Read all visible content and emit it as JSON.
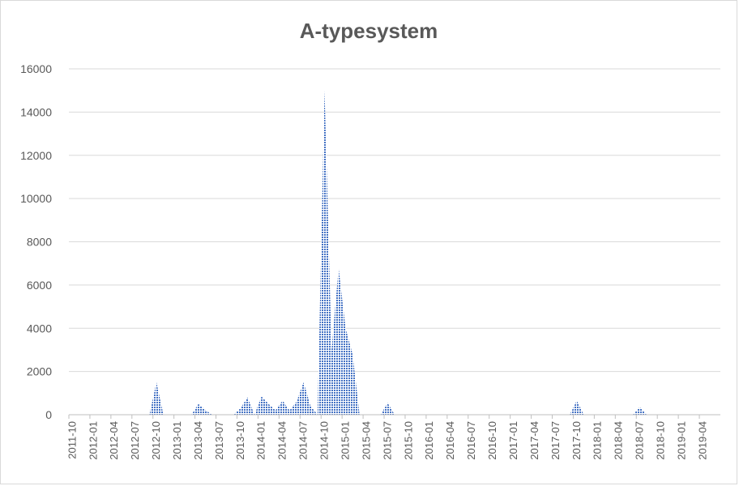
{
  "chart_data": {
    "type": "area",
    "title": "A-typesystem",
    "xlabel": "",
    "ylabel": "",
    "ylim": [
      0,
      16000
    ],
    "yticks": [
      0,
      2000,
      4000,
      6000,
      8000,
      10000,
      12000,
      14000,
      16000
    ],
    "grid": true,
    "x_tick_labels": [
      "2011-10",
      "2012-01",
      "2012-04",
      "2012-07",
      "2012-10",
      "2013-01",
      "2013-04",
      "2013-07",
      "2013-10",
      "2014-01",
      "2014-04",
      "2014-07",
      "2014-10",
      "2015-01",
      "2015-04",
      "2015-07",
      "2015-10",
      "2016-01",
      "2016-04",
      "2016-07",
      "2016-10",
      "2017-01",
      "2017-04",
      "2017-07",
      "2017-10",
      "2018-01",
      "2018-04",
      "2018-07",
      "2018-10",
      "2019-01",
      "2019-04"
    ],
    "x": [
      "2011-10",
      "2011-11",
      "2011-12",
      "2012-01",
      "2012-02",
      "2012-03",
      "2012-04",
      "2012-05",
      "2012-06",
      "2012-07",
      "2012-08",
      "2012-09",
      "2012-10",
      "2012-11",
      "2012-12",
      "2013-01",
      "2013-02",
      "2013-03",
      "2013-04",
      "2013-05",
      "2013-06",
      "2013-07",
      "2013-08",
      "2013-09",
      "2013-10",
      "2013-11",
      "2013-12",
      "2014-01",
      "2014-02",
      "2014-03",
      "2014-04",
      "2014-05",
      "2014-06",
      "2014-07",
      "2014-08",
      "2014-09",
      "2014-10",
      "2014-11",
      "2014-12",
      "2015-01",
      "2015-02",
      "2015-03",
      "2015-04",
      "2015-05",
      "2015-06",
      "2015-07",
      "2015-08",
      "2015-09",
      "2015-10",
      "2015-11",
      "2015-12",
      "2016-01",
      "2016-02",
      "2016-03",
      "2016-04",
      "2016-05",
      "2016-06",
      "2016-07",
      "2016-08",
      "2016-09",
      "2016-10",
      "2016-11",
      "2016-12",
      "2017-01",
      "2017-02",
      "2017-03",
      "2017-04",
      "2017-05",
      "2017-06",
      "2017-07",
      "2017-08",
      "2017-09",
      "2017-10",
      "2017-11",
      "2017-12",
      "2018-01",
      "2018-02",
      "2018-03",
      "2018-04",
      "2018-05",
      "2018-06",
      "2018-07",
      "2018-08",
      "2018-09",
      "2018-10",
      "2018-11",
      "2018-12",
      "2019-01",
      "2019-02",
      "2019-03",
      "2019-04",
      "2019-05",
      "2019-06"
    ],
    "series": [
      {
        "values": [
          0,
          0,
          0,
          0,
          0,
          0,
          0,
          0,
          0,
          0,
          0,
          0,
          1500,
          0,
          0,
          0,
          0,
          0,
          500,
          200,
          0,
          0,
          0,
          0,
          300,
          800,
          0,
          850,
          500,
          200,
          650,
          200,
          600,
          1500,
          400,
          0,
          15000,
          3000,
          6800,
          4000,
          2800,
          0,
          0,
          0,
          0,
          550,
          0,
          0,
          0,
          0,
          0,
          0,
          0,
          0,
          0,
          0,
          0,
          0,
          0,
          0,
          0,
          0,
          0,
          0,
          0,
          0,
          0,
          0,
          0,
          0,
          0,
          0,
          650,
          0,
          0,
          0,
          0,
          0,
          0,
          0,
          0,
          350,
          0,
          0,
          0,
          0,
          0,
          0,
          0,
          0,
          0,
          0,
          0
        ]
      }
    ],
    "colors": {
      "fill": "#4472c4",
      "grid": "#d9d9d9",
      "axis": "#bfbfbf",
      "text": "#595959"
    }
  }
}
